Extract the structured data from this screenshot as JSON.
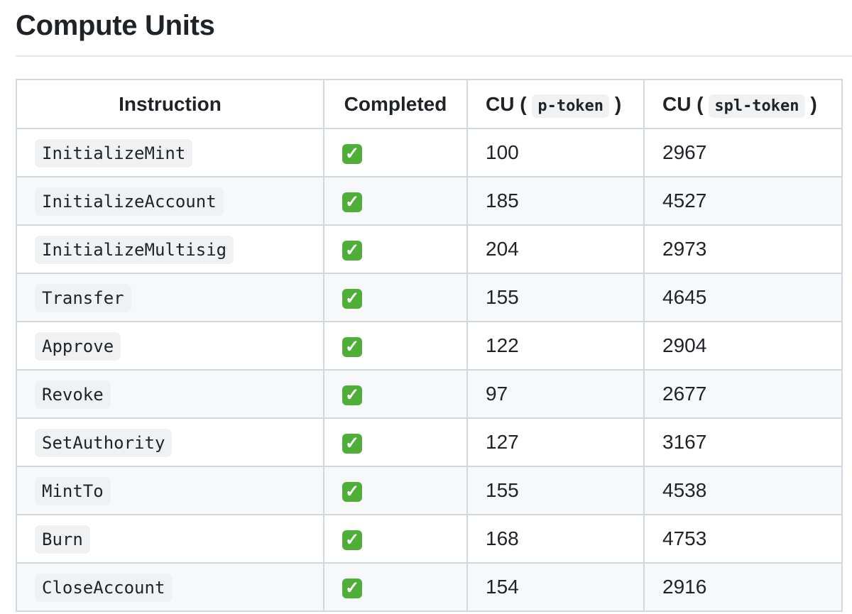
{
  "title": "Compute Units",
  "table": {
    "headers": {
      "instruction": "Instruction",
      "completed": "Completed",
      "cu_ptoken_prefix": "CU (",
      "cu_ptoken_code": "p-token",
      "cu_ptoken_suffix": ")",
      "cu_spl_prefix": "CU (",
      "cu_spl_code": "spl-token",
      "cu_spl_suffix": ")"
    },
    "rows": [
      {
        "instruction": "InitializeMint",
        "completed": "✓",
        "p_token": "100",
        "spl_token": "2967"
      },
      {
        "instruction": "InitializeAccount",
        "completed": "✓",
        "p_token": "185",
        "spl_token": "4527"
      },
      {
        "instruction": "InitializeMultisig",
        "completed": "✓",
        "p_token": "204",
        "spl_token": "2973"
      },
      {
        "instruction": "Transfer",
        "completed": "✓",
        "p_token": "155",
        "spl_token": "4645"
      },
      {
        "instruction": "Approve",
        "completed": "✓",
        "p_token": "122",
        "spl_token": "2904"
      },
      {
        "instruction": "Revoke",
        "completed": "✓",
        "p_token": "97",
        "spl_token": "2677"
      },
      {
        "instruction": "SetAuthority",
        "completed": "✓",
        "p_token": "127",
        "spl_token": "3167"
      },
      {
        "instruction": "MintTo",
        "completed": "✓",
        "p_token": "155",
        "spl_token": "4538"
      },
      {
        "instruction": "Burn",
        "completed": "✓",
        "p_token": "168",
        "spl_token": "4753"
      },
      {
        "instruction": "CloseAccount",
        "completed": "✓",
        "p_token": "154",
        "spl_token": "2916"
      }
    ]
  },
  "colors": {
    "check": "#4fae38",
    "border": "#d1d9e0",
    "stripe": "#f6f8fa"
  }
}
